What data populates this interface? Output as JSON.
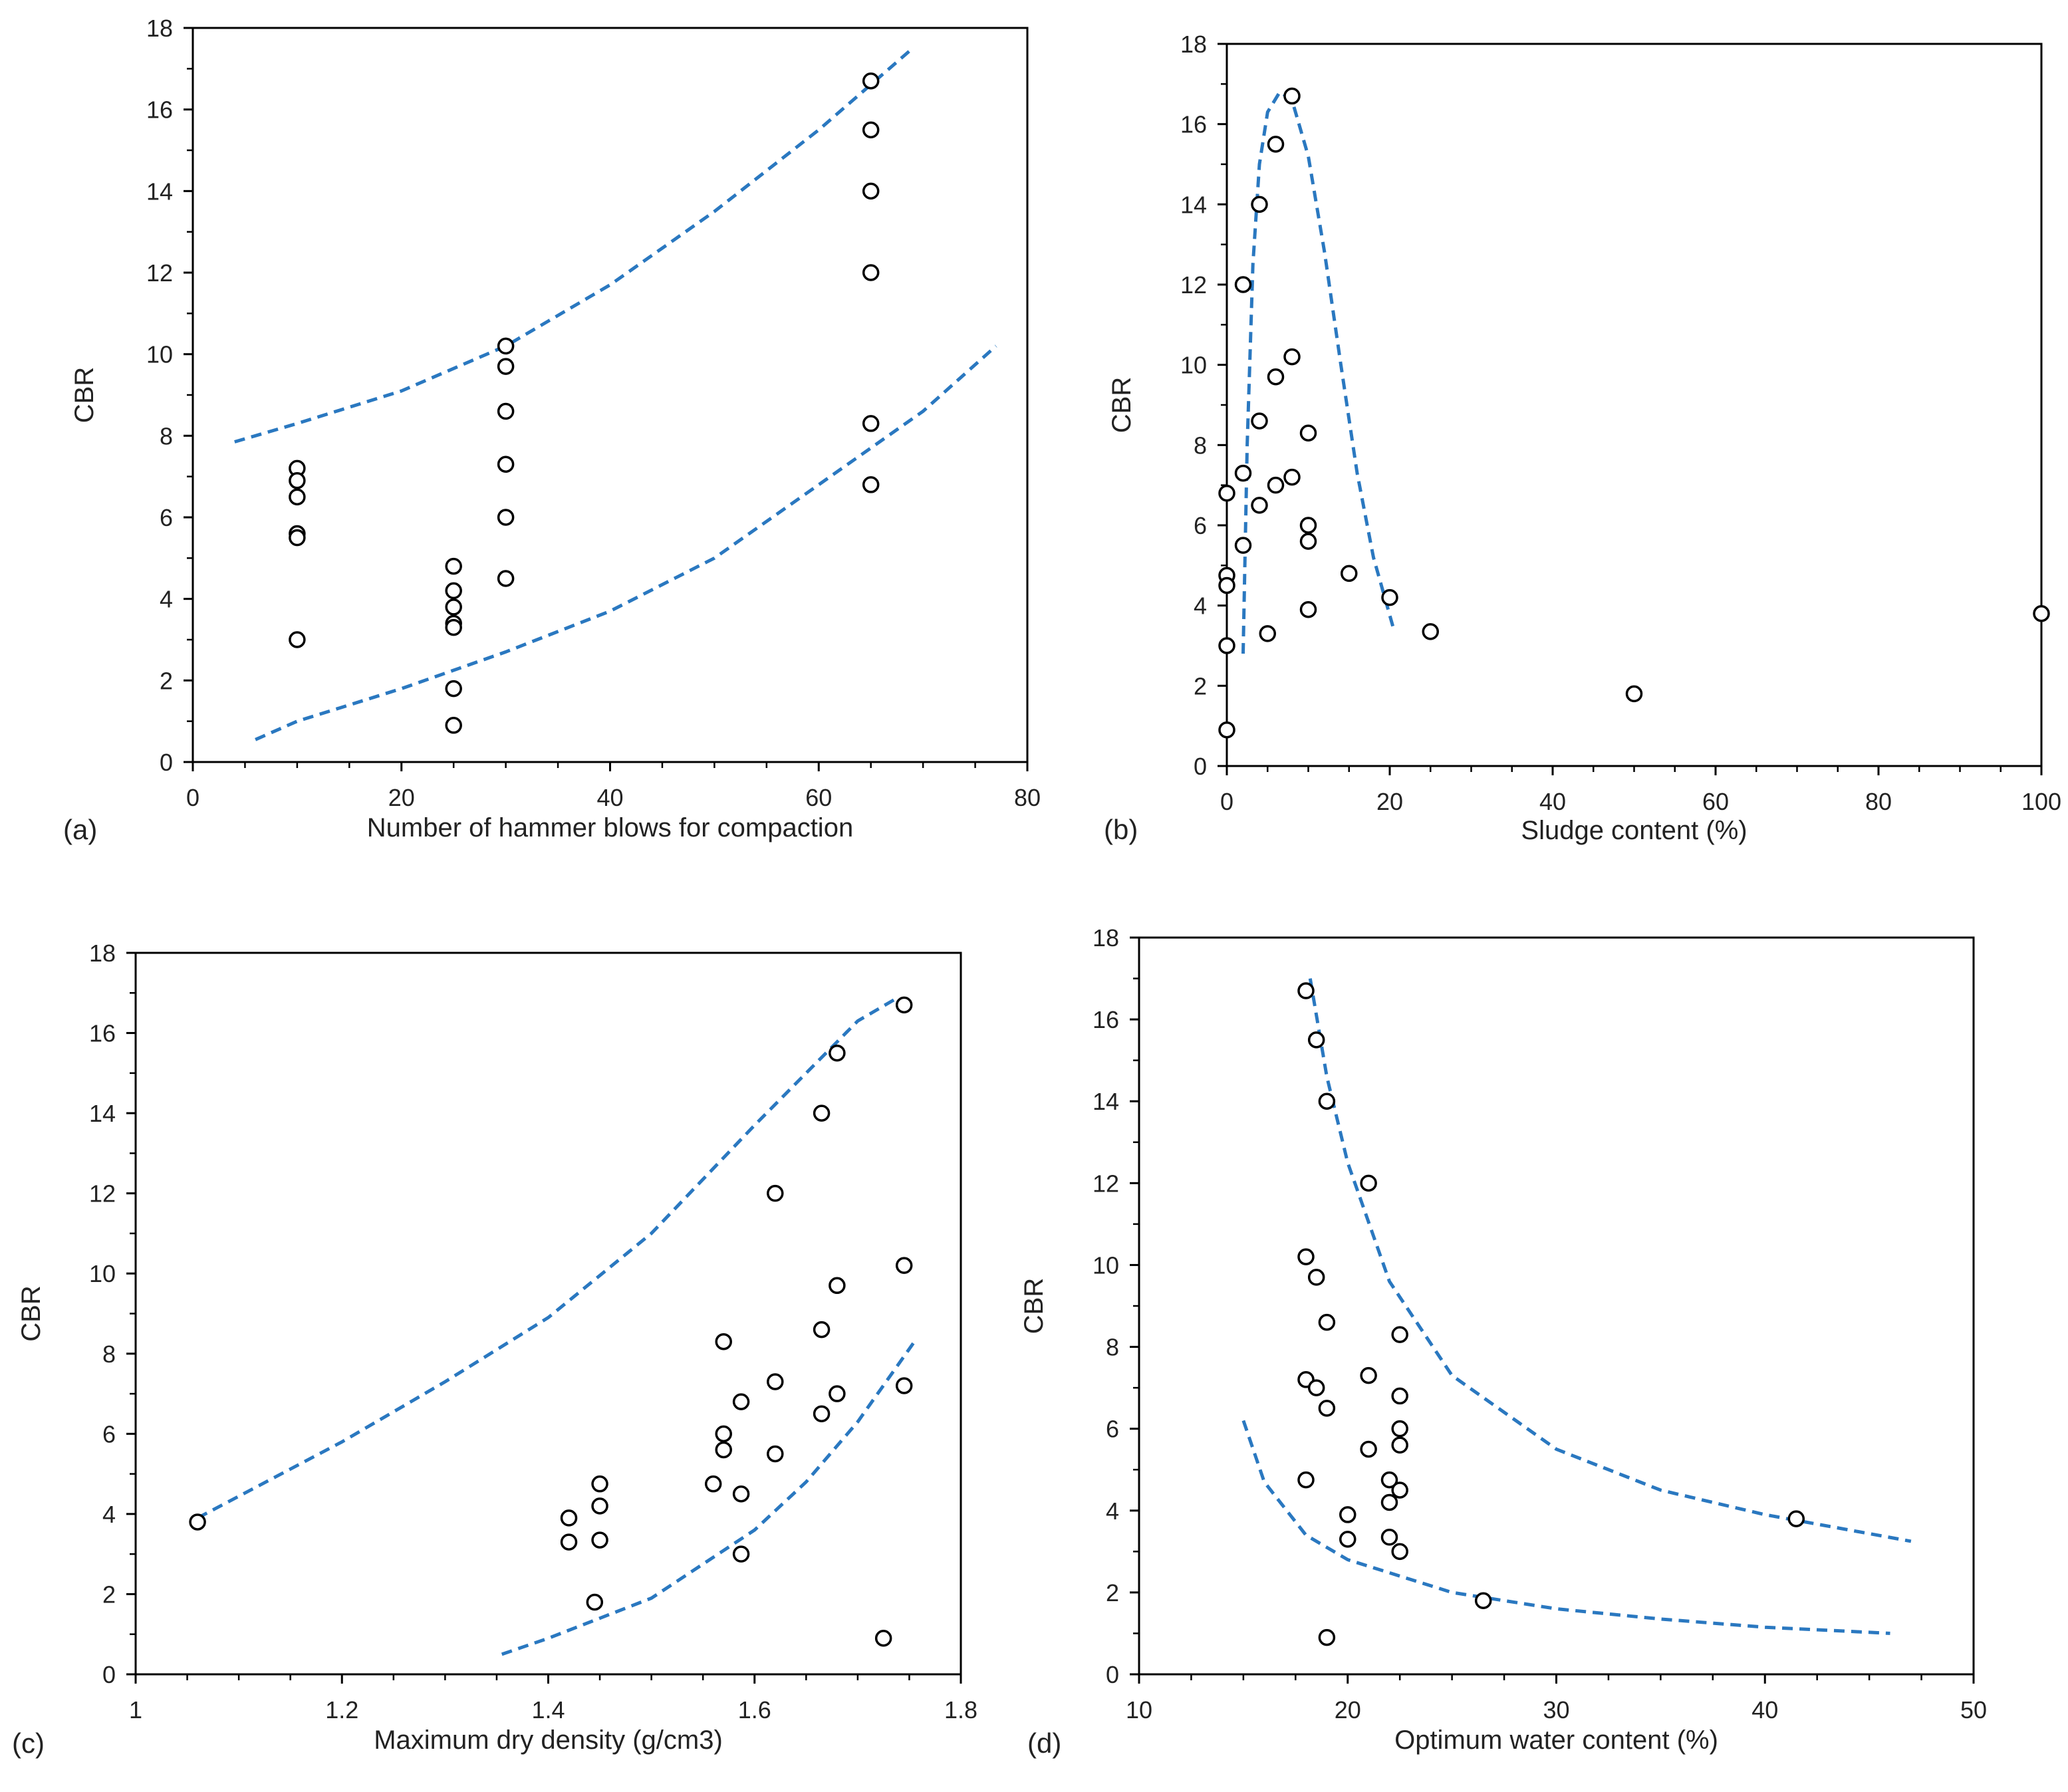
{
  "colors": {
    "bound_line": "#2a78c0",
    "marker_stroke": "#000000",
    "axis": "#000000"
  },
  "chart_data": [
    {
      "panel_label": "(a)",
      "type": "scatter",
      "xlabel": "Number of hammer blows for compaction",
      "ylabel": "CBR",
      "xlim": [
        0,
        80
      ],
      "ylim": [
        0,
        18
      ],
      "xticks": [
        0,
        20,
        40,
        60,
        80
      ],
      "yticks": [
        0,
        2,
        4,
        6,
        8,
        10,
        12,
        14,
        16,
        18
      ],
      "grid": false,
      "points": [
        [
          10,
          7.2
        ],
        [
          10,
          6.9
        ],
        [
          10,
          6.5
        ],
        [
          10,
          5.6
        ],
        [
          10,
          5.5
        ],
        [
          10,
          3.0
        ],
        [
          25,
          4.8
        ],
        [
          25,
          4.2
        ],
        [
          25,
          3.8
        ],
        [
          25,
          3.4
        ],
        [
          25,
          3.3
        ],
        [
          25,
          1.8
        ],
        [
          25,
          0.9
        ],
        [
          30,
          10.2
        ],
        [
          30,
          9.7
        ],
        [
          30,
          8.6
        ],
        [
          30,
          7.3
        ],
        [
          30,
          6.0
        ],
        [
          30,
          4.5
        ],
        [
          65,
          16.7
        ],
        [
          65,
          15.5
        ],
        [
          65,
          14.0
        ],
        [
          65,
          12.0
        ],
        [
          65,
          8.3
        ],
        [
          65,
          6.8
        ]
      ],
      "bounds": [
        [
          [
            4,
            7.85
          ],
          [
            10,
            8.3
          ],
          [
            20,
            9.1
          ],
          [
            30,
            10.2
          ],
          [
            40,
            11.7
          ],
          [
            50,
            13.5
          ],
          [
            60,
            15.5
          ],
          [
            69,
            17.5
          ]
        ],
        [
          [
            6,
            0.55
          ],
          [
            10,
            1.0
          ],
          [
            20,
            1.8
          ],
          [
            30,
            2.7
          ],
          [
            40,
            3.7
          ],
          [
            50,
            5.0
          ],
          [
            60,
            6.8
          ],
          [
            70,
            8.6
          ],
          [
            77,
            10.2
          ]
        ]
      ]
    },
    {
      "panel_label": "(b)",
      "type": "scatter",
      "xlabel": "Sludge content (%)",
      "ylabel": "CBR",
      "xlim": [
        0,
        100
      ],
      "ylim": [
        0,
        18
      ],
      "xticks": [
        0,
        20,
        40,
        60,
        80,
        100
      ],
      "yticks": [
        0,
        2,
        4,
        6,
        8,
        10,
        12,
        14,
        16,
        18
      ],
      "grid": false,
      "points": [
        [
          8,
          16.7
        ],
        [
          6,
          15.5
        ],
        [
          4,
          14.0
        ],
        [
          2,
          12.0
        ],
        [
          8,
          10.2
        ],
        [
          6,
          9.7
        ],
        [
          4,
          8.6
        ],
        [
          10,
          8.3
        ],
        [
          2,
          7.3
        ],
        [
          8,
          7.2
        ],
        [
          6,
          7.0
        ],
        [
          0,
          6.8
        ],
        [
          4,
          6.5
        ],
        [
          10,
          6.0
        ],
        [
          10,
          5.6
        ],
        [
          2,
          5.5
        ],
        [
          0,
          4.75
        ],
        [
          15,
          4.8
        ],
        [
          0,
          4.5
        ],
        [
          20,
          4.2
        ],
        [
          10,
          3.9
        ],
        [
          25,
          3.35
        ],
        [
          5,
          3.3
        ],
        [
          0,
          3.0
        ],
        [
          0,
          0.9
        ],
        [
          50,
          1.8
        ],
        [
          100,
          3.8
        ]
      ],
      "bounds": [
        [
          [
            2,
            2.8
          ],
          [
            2.5,
            8
          ],
          [
            3.2,
            12.5
          ],
          [
            4,
            15
          ],
          [
            5,
            16.3
          ],
          [
            6.5,
            16.8
          ],
          [
            8,
            16.6
          ],
          [
            10,
            15.2
          ],
          [
            12,
            12.8
          ],
          [
            14,
            10.0
          ],
          [
            16,
            7.3
          ],
          [
            18,
            5.2
          ],
          [
            20.5,
            3.4
          ]
        ]
      ]
    },
    {
      "panel_label": "(c)",
      "type": "scatter",
      "xlabel": "Maximum dry density (g/cm3)",
      "ylabel": "CBR",
      "xlim": [
        1,
        1.8
      ],
      "ylim": [
        0,
        18
      ],
      "xticks": [
        1,
        1.2,
        1.4,
        1.6,
        1.8
      ],
      "yticks": [
        0,
        2,
        4,
        6,
        8,
        10,
        12,
        14,
        16,
        18
      ],
      "grid": false,
      "points": [
        [
          1.06,
          3.8
        ],
        [
          1.745,
          16.7
        ],
        [
          1.68,
          15.5
        ],
        [
          1.665,
          14.0
        ],
        [
          1.62,
          12.0
        ],
        [
          1.745,
          10.2
        ],
        [
          1.68,
          9.7
        ],
        [
          1.665,
          8.6
        ],
        [
          1.57,
          8.3
        ],
        [
          1.62,
          7.3
        ],
        [
          1.745,
          7.2
        ],
        [
          1.68,
          7.0
        ],
        [
          1.587,
          6.8
        ],
        [
          1.665,
          6.5
        ],
        [
          1.57,
          6.0
        ],
        [
          1.57,
          5.6
        ],
        [
          1.62,
          5.5
        ],
        [
          1.56,
          4.75
        ],
        [
          1.45,
          4.75
        ],
        [
          1.587,
          4.5
        ],
        [
          1.45,
          4.2
        ],
        [
          1.42,
          3.9
        ],
        [
          1.45,
          3.35
        ],
        [
          1.42,
          3.3
        ],
        [
          1.587,
          3.0
        ],
        [
          1.445,
          1.8
        ],
        [
          1.725,
          0.9
        ]
      ],
      "bounds": [
        [
          [
            1.06,
            3.9
          ],
          [
            1.2,
            5.8
          ],
          [
            1.3,
            7.3
          ],
          [
            1.4,
            8.9
          ],
          [
            1.5,
            11.0
          ],
          [
            1.6,
            13.7
          ],
          [
            1.7,
            16.3
          ],
          [
            1.74,
            16.9
          ]
        ],
        [
          [
            1.355,
            0.5
          ],
          [
            1.4,
            0.9
          ],
          [
            1.5,
            1.9
          ],
          [
            1.6,
            3.6
          ],
          [
            1.65,
            4.8
          ],
          [
            1.7,
            6.3
          ],
          [
            1.755,
            8.3
          ]
        ]
      ]
    },
    {
      "panel_label": "(d)",
      "type": "scatter",
      "xlabel": "Optimum water content (%)",
      "ylabel": "CBR",
      "xlim": [
        10,
        50
      ],
      "ylim": [
        0,
        18
      ],
      "xticks": [
        10,
        20,
        30,
        40,
        50
      ],
      "yticks": [
        0,
        2,
        4,
        6,
        8,
        10,
        12,
        14,
        16,
        18
      ],
      "grid": false,
      "points": [
        [
          18,
          16.7
        ],
        [
          18.5,
          15.5
        ],
        [
          19,
          14.0
        ],
        [
          21,
          12.0
        ],
        [
          18,
          10.2
        ],
        [
          18.5,
          9.7
        ],
        [
          19,
          8.6
        ],
        [
          22.5,
          8.3
        ],
        [
          21,
          7.3
        ],
        [
          18,
          7.2
        ],
        [
          18.5,
          7.0
        ],
        [
          22.5,
          6.8
        ],
        [
          19,
          6.5
        ],
        [
          22.5,
          6.0
        ],
        [
          22.5,
          5.6
        ],
        [
          21,
          5.5
        ],
        [
          18,
          4.75
        ],
        [
          22,
          4.75
        ],
        [
          22.5,
          4.5
        ],
        [
          22,
          4.2
        ],
        [
          20,
          3.9
        ],
        [
          22,
          3.35
        ],
        [
          20,
          3.3
        ],
        [
          22.5,
          3.0
        ],
        [
          26.5,
          1.8
        ],
        [
          19,
          0.9
        ],
        [
          41.5,
          3.8
        ]
      ],
      "bounds": [
        [
          [
            18.2,
            17.0
          ],
          [
            19,
            14.6
          ],
          [
            20,
            12.5
          ],
          [
            22,
            9.6
          ],
          [
            25,
            7.3
          ],
          [
            30,
            5.5
          ],
          [
            35,
            4.5
          ],
          [
            40,
            3.9
          ],
          [
            47,
            3.25
          ]
        ],
        [
          [
            15,
            6.2
          ],
          [
            16,
            4.7
          ],
          [
            18,
            3.4
          ],
          [
            20,
            2.8
          ],
          [
            25,
            2.0
          ],
          [
            30,
            1.6
          ],
          [
            35,
            1.35
          ],
          [
            40,
            1.15
          ],
          [
            46,
            1.0
          ]
        ]
      ]
    }
  ]
}
